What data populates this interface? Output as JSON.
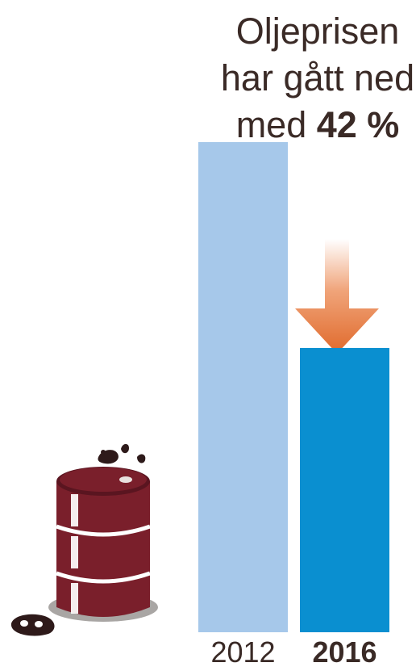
{
  "chart_data": {
    "type": "bar",
    "title_lines": [
      "Oljeprisen",
      "har gått ned",
      "med "
    ],
    "title_highlight": "42 %",
    "categories": [
      "2012",
      "2016"
    ],
    "values": [
      100,
      58
    ],
    "highlight_category": "2016",
    "change_percent": -42,
    "ylim": [
      0,
      100
    ],
    "grid": false,
    "colors": {
      "bar_2012": "#a6c8ea",
      "bar_2016": "#0a8fd0",
      "arrow": "#e06a2c",
      "barrel": "#7a1f2b",
      "text": "#3a2a26"
    },
    "icons": [
      "oil-barrel-icon",
      "down-arrow-icon"
    ]
  }
}
